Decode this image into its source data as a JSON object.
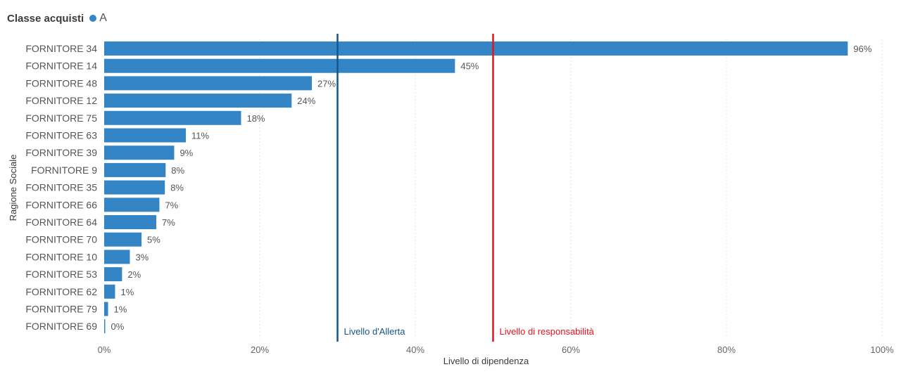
{
  "legend": {
    "title": "Classe acquisti",
    "series_name": "A",
    "color": "#3385c6"
  },
  "chart_data": {
    "type": "bar",
    "orientation": "horizontal",
    "categories": [
      "FORNITORE 34",
      "FORNITORE 14",
      "FORNITORE 48",
      "FORNITORE 12",
      "FORNITORE 75",
      "FORNITORE 63",
      "FORNITORE 39",
      "FORNITORE 9",
      "FORNITORE 35",
      "FORNITORE 66",
      "FORNITORE 64",
      "FORNITORE 70",
      "FORNITORE 10",
      "FORNITORE 53",
      "FORNITORE 62",
      "FORNITORE 79",
      "FORNITORE 69"
    ],
    "values": [
      95.6,
      45.1,
      26.7,
      24.1,
      17.6,
      10.5,
      9.0,
      7.9,
      7.8,
      7.1,
      6.7,
      4.8,
      3.3,
      2.3,
      1.4,
      0.5,
      0.1
    ],
    "data_labels": [
      "96%",
      "45%",
      "27%",
      "24%",
      "18%",
      "11%",
      "9%",
      "8%",
      "8%",
      "7%",
      "7%",
      "5%",
      "3%",
      "2%",
      "1%",
      "1%",
      "0%"
    ],
    "xlabel": "Livello di dipendenza",
    "ylabel": "Ragione Sociale",
    "xlim": [
      0,
      100
    ],
    "ticks": [
      0,
      20,
      40,
      60,
      80,
      100
    ],
    "tick_labels": [
      "0%",
      "20%",
      "40%",
      "60%",
      "80%",
      "100%"
    ],
    "grid": true,
    "reference_lines": [
      {
        "label": "Livello d'Allerta",
        "value": 30,
        "color": "#12568a"
      },
      {
        "label": "Livello di responsabilità",
        "value": 50,
        "color": "#e8111c"
      }
    ],
    "bar_color": "#3385c6"
  }
}
